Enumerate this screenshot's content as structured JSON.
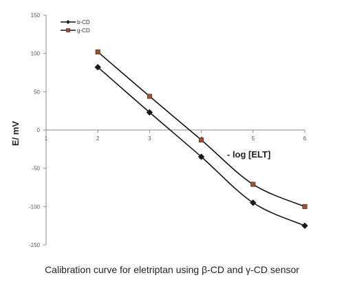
{
  "caption": "Calibration curve for eletriptan using β-CD and γ-CD sensor",
  "chart_data": {
    "type": "line",
    "xlabel": "- log [ELT]",
    "ylabel": "E/ mV",
    "xlim": [
      1,
      6
    ],
    "ylim": [
      -150,
      150
    ],
    "x_ticks": [
      1,
      2,
      3,
      4,
      5,
      6
    ],
    "y_ticks": [
      150,
      100,
      50,
      0,
      -50,
      -100,
      -150
    ],
    "legend_position": "top-left",
    "grid": false,
    "series": [
      {
        "name": "b-CD",
        "color": "#1a1a1a",
        "marker": "diamond",
        "x": [
          2,
          3,
          4,
          5,
          6
        ],
        "y": [
          82,
          23,
          -35,
          -95,
          -125
        ]
      },
      {
        "name": "g-CD",
        "color": "#a0522d",
        "marker": "square",
        "x": [
          2,
          3,
          4,
          5,
          6
        ],
        "y": [
          102,
          44,
          -13,
          -71,
          -100
        ]
      }
    ]
  }
}
